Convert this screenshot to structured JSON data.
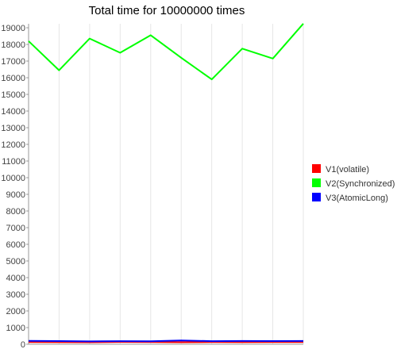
{
  "chart_data": {
    "type": "line",
    "title": "Total time for 10000000 times",
    "xlabel": "",
    "ylabel": "",
    "ylim": [
      0,
      19000
    ],
    "yticks": [
      0,
      1000,
      2000,
      3000,
      4000,
      5000,
      6000,
      7000,
      8000,
      9000,
      10000,
      11000,
      12000,
      13000,
      14000,
      15000,
      16000,
      17000,
      18000,
      19000
    ],
    "x": [
      1,
      2,
      3,
      4,
      5,
      6,
      7,
      8,
      9,
      10
    ],
    "grid": "vertical light lines at each x point",
    "legend_position": "right",
    "series": [
      {
        "name": "V1(volatile)",
        "color": "#ff0000",
        "values": [
          130,
          125,
          120,
          140,
          135,
          120,
          130,
          125,
          135,
          130
        ]
      },
      {
        "name": "V2(Synchronized)",
        "color": "#00ff00",
        "values": [
          18200,
          16450,
          18350,
          17500,
          18550,
          17200,
          15900,
          17750,
          17150,
          19250
        ]
      },
      {
        "name": "V3(AtomicLong)",
        "color": "#0000ff",
        "values": [
          200,
          190,
          170,
          185,
          175,
          230,
          185,
          195,
          190,
          195
        ]
      }
    ]
  }
}
